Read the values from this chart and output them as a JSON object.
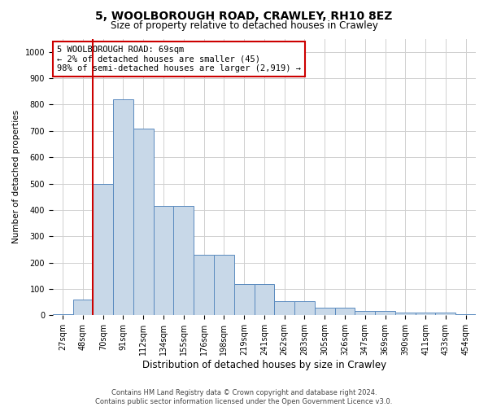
{
  "title1": "5, WOOLBOROUGH ROAD, CRAWLEY, RH10 8EZ",
  "title2": "Size of property relative to detached houses in Crawley",
  "xlabel": "Distribution of detached houses by size in Crawley",
  "ylabel": "Number of detached properties",
  "footer1": "Contains HM Land Registry data © Crown copyright and database right 2024.",
  "footer2": "Contains public sector information licensed under the Open Government Licence v3.0.",
  "annotation_title": "5 WOOLBOROUGH ROAD: 69sqm",
  "annotation_line1": "← 2% of detached houses are smaller (45)",
  "annotation_line2": "98% of semi-detached houses are larger (2,919) →",
  "property_size_bin": 2,
  "bin_labels": [
    "27sqm",
    "48sqm",
    "70sqm",
    "91sqm",
    "112sqm",
    "134sqm",
    "155sqm",
    "176sqm",
    "198sqm",
    "219sqm",
    "241sqm",
    "262sqm",
    "283sqm",
    "305sqm",
    "326sqm",
    "347sqm",
    "369sqm",
    "390sqm",
    "411sqm",
    "433sqm",
    "454sqm"
  ],
  "bar_heights": [
    5,
    60,
    500,
    820,
    710,
    415,
    415,
    230,
    230,
    120,
    120,
    55,
    55,
    30,
    30,
    15,
    15,
    10,
    10,
    10,
    5
  ],
  "bar_color": "#c8d8e8",
  "bar_edge_color": "#5a8abf",
  "vline_color": "#cc0000",
  "annotation_box_color": "#ffffff",
  "annotation_box_edge": "#cc0000",
  "grid_color": "#d0d0d0",
  "bg_color": "#ffffff",
  "ylim": [
    0,
    1050
  ],
  "yticks": [
    0,
    100,
    200,
    300,
    400,
    500,
    600,
    700,
    800,
    900,
    1000
  ],
  "title1_fontsize": 10,
  "title2_fontsize": 8.5,
  "xlabel_fontsize": 8.5,
  "ylabel_fontsize": 7.5,
  "tick_fontsize": 7,
  "footer_fontsize": 6,
  "annotation_fontsize": 7.5
}
